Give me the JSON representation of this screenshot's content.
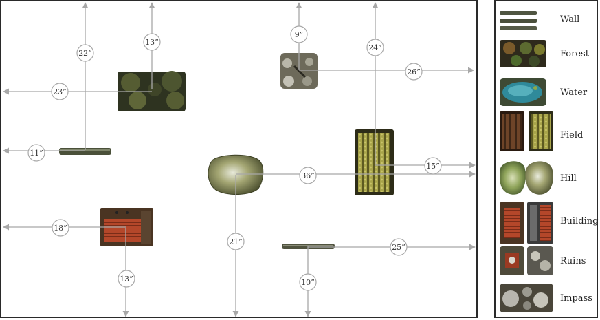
{
  "measure_labels": {
    "m22": "22”",
    "m13a": "13”",
    "m23": "23”",
    "m11": "11”",
    "m9": "9”",
    "m24": "24”",
    "m26": "26”",
    "m15": "15”",
    "m36": "36”",
    "m18": "18”",
    "m21": "21”",
    "m13b": "13”",
    "m10": "10”",
    "m25": "25”"
  },
  "legend": [
    {
      "key": "wall",
      "label": "Wall"
    },
    {
      "key": "forest",
      "label": "Forest"
    },
    {
      "key": "water",
      "label": "Water"
    },
    {
      "key": "field",
      "label": "Field"
    },
    {
      "key": "hill",
      "label": "Hill"
    },
    {
      "key": "building",
      "label": "Building"
    },
    {
      "key": "ruins",
      "label": "Ruins"
    },
    {
      "key": "impass",
      "label": "Impass"
    }
  ],
  "colors": {
    "border": "#2a2a2a",
    "measure_line": "#a8a8a8",
    "forest": "#3b4126",
    "water": "#2f7c8a",
    "field": "#7d7a2a",
    "hill": "#8b8c5a",
    "building": "#8a3b22",
    "ruins": "#5e5a4f",
    "impass": "#7c7a72",
    "wall": "#555b4a"
  }
}
